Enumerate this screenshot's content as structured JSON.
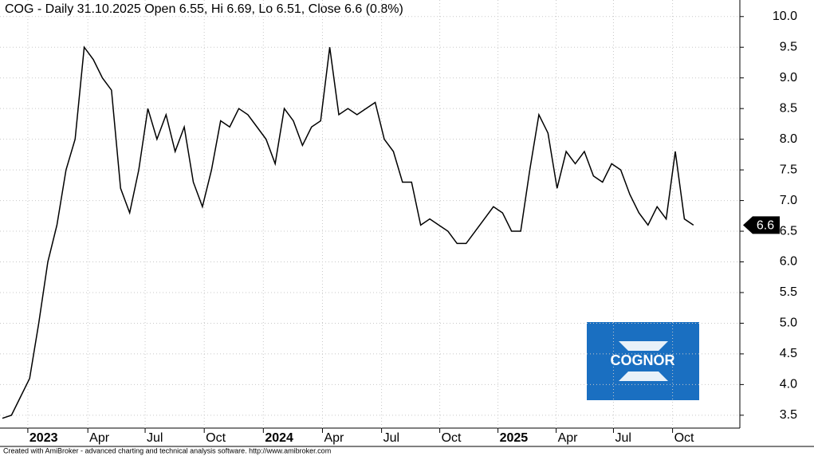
{
  "chart_data": {
    "type": "line",
    "title": "COG - Daily 31.10.2025 Open 6.55, Hi 6.69, Lo 6.51, Close 6.6 (0.8%)",
    "footer": "Created with AmiBroker - advanced charting and technical analysis software. http://www.amibroker.com",
    "logo": "COGNOR",
    "color": "#000000",
    "last_value": 6.6,
    "values": [
      3.45,
      3.5,
      3.8,
      4.1,
      5.0,
      6.0,
      6.6,
      7.5,
      8.0,
      9.5,
      9.3,
      9.0,
      8.8,
      7.2,
      6.8,
      7.5,
      8.5,
      8.0,
      8.4,
      7.8,
      8.2,
      7.3,
      6.9,
      7.5,
      8.3,
      8.2,
      8.5,
      8.4,
      8.2,
      8.0,
      7.6,
      8.5,
      8.3,
      7.9,
      8.2,
      8.3,
      9.5,
      8.4,
      8.5,
      8.4,
      8.5,
      8.6,
      8.0,
      7.8,
      7.3,
      7.3,
      6.6,
      6.7,
      6.6,
      6.5,
      6.3,
      6.3,
      6.5,
      6.7,
      6.9,
      6.8,
      6.5,
      6.5,
      7.5,
      8.4,
      8.1,
      7.2,
      7.8,
      7.6,
      7.8,
      7.4,
      7.3,
      7.6,
      7.5,
      7.1,
      6.8,
      6.6,
      6.9,
      6.7,
      7.8,
      6.7,
      6.6
    ],
    "xlim": [
      -0.26,
      81.1
    ],
    "xticks": [
      {
        "value": 2.8,
        "label": "2023"
      },
      {
        "value": 9.4,
        "label": "Apr"
      },
      {
        "value": 15.7,
        "label": "Jul"
      },
      {
        "value": 22.2,
        "label": "Oct"
      },
      {
        "value": 28.7,
        "label": "2024"
      },
      {
        "value": 35.2,
        "label": "Apr"
      },
      {
        "value": 41.7,
        "label": "Jul"
      },
      {
        "value": 48.1,
        "label": "Oct"
      },
      {
        "value": 54.5,
        "label": "2025"
      },
      {
        "value": 60.9,
        "label": "Apr"
      },
      {
        "value": 67.2,
        "label": "Jul"
      },
      {
        "value": 73.7,
        "label": "Oct"
      }
    ],
    "ylim": [
      3.29,
      10.27
    ],
    "yticks": [
      3.5,
      {
        "value": 4,
        "label": "4.0"
      },
      4.5,
      {
        "value": 5,
        "label": "5.0"
      },
      5.5,
      {
        "value": 6,
        "label": "6.0"
      },
      6.5,
      {
        "value": 7,
        "label": "7.0"
      },
      7.5,
      {
        "value": 8,
        "label": "8.0"
      },
      8.5,
      {
        "value": 9,
        "label": "9.0"
      },
      9.5,
      {
        "value": 10,
        "label": "10.0"
      }
    ],
    "grid": true
  }
}
